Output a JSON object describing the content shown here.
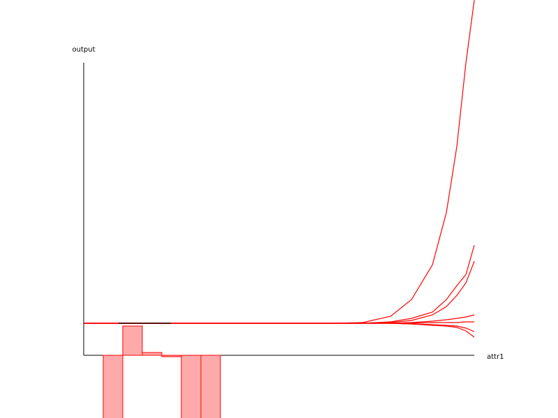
{
  "chart_data": [
    {
      "type": "histogram",
      "bins": [
        28,
        56,
        84,
        112,
        140,
        168,
        196
      ],
      "values": [
        -120,
        42,
        4,
        -2,
        -120,
        -120
      ],
      "color": "#ffaaaa",
      "edge_color": "#ff0000",
      "xlim": [
        0,
        560
      ],
      "ylim": [
        -90,
        510
      ]
    },
    {
      "type": "line",
      "x_label": "attr1",
      "y_label": "output",
      "x": [
        0,
        50,
        125,
        320,
        360,
        400,
        440,
        470,
        500,
        520,
        535,
        548,
        560
      ],
      "series": [
        {
          "color": "#ff0000",
          "values": [
            46,
            46,
            46,
            46,
            46,
            47,
            56,
            80,
            130,
            205,
            300,
            420,
            510
          ]
        },
        {
          "color": "#ff0000",
          "values": [
            46,
            46,
            46,
            46,
            46,
            46,
            48,
            53,
            62,
            80,
            100,
            116,
            158
          ]
        },
        {
          "color": "#ff0000",
          "values": [
            46,
            46,
            46,
            46,
            46,
            46,
            47,
            50,
            58,
            70,
            86,
            104,
            135
          ]
        },
        {
          "color": "#ff0000",
          "values": [
            46,
            46,
            46,
            46,
            46,
            46,
            46,
            47,
            49,
            51,
            53,
            55,
            58
          ]
        },
        {
          "color": "#ff0000",
          "values": [
            46,
            46,
            46,
            46,
            46,
            46,
            46,
            46,
            47,
            47,
            47,
            48,
            48
          ]
        },
        {
          "color": "#ff0000",
          "values": [
            46,
            46,
            46,
            46,
            46,
            46,
            46,
            45,
            44,
            43,
            42,
            39,
            34
          ]
        },
        {
          "color": "#ff0000",
          "values": [
            46,
            46,
            46,
            46,
            46,
            46,
            46,
            45,
            43,
            42,
            40,
            35,
            26
          ]
        },
        {
          "color": "#000000",
          "values": [
            null,
            46,
            46,
            null,
            null,
            null,
            null,
            null,
            null,
            null,
            null,
            null,
            null
          ]
        }
      ],
      "xlim": [
        0,
        560
      ],
      "ylim": [
        -90,
        510
      ]
    }
  ]
}
